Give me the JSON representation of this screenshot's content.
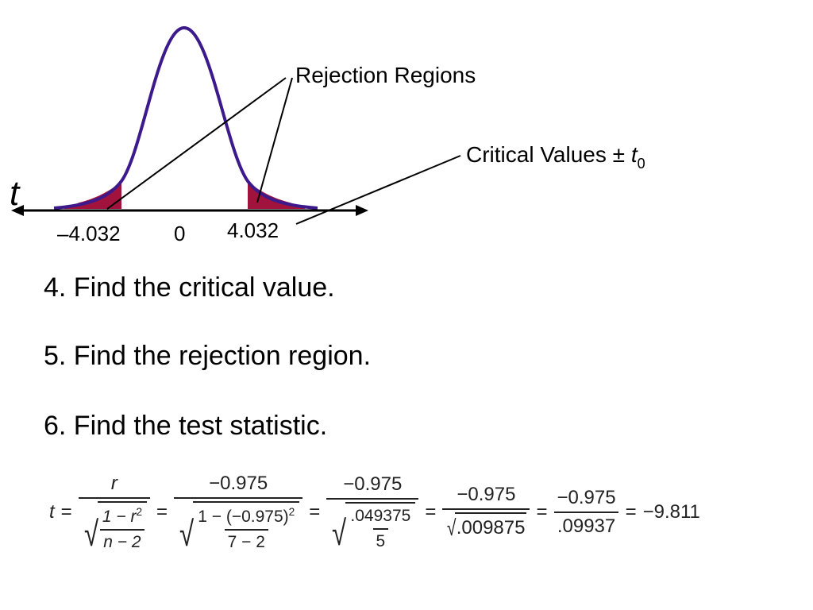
{
  "diagram": {
    "axis_variable": "t",
    "tick_labels": {
      "left": "–4.032",
      "center": "0",
      "right": "4.032"
    },
    "annotations": {
      "rejection_regions": "Rejection Regions",
      "critical_values_prefix": "Critical Values ± ",
      "critical_values_var": "t",
      "critical_values_sub": "0"
    },
    "colors": {
      "curve": "#3d1a8c",
      "shade": "#a1123c",
      "axis": "#000000"
    }
  },
  "steps": [
    "4. Find the critical value.",
    "5. Find the rejection region.",
    "6. Find the test statistic."
  ],
  "formula": {
    "lhs": "t",
    "f1": {
      "num": "r",
      "den_num": "1 − r",
      "den_num_exp": "2",
      "den_den": "n − 2"
    },
    "f2": {
      "num": "−0.975",
      "den_num": "1 − (−0.975)",
      "den_num_exp": "2",
      "den_den": "7 − 2"
    },
    "f3": {
      "num": "−0.975",
      "den_num": ".049375",
      "den_den": "5"
    },
    "f4": {
      "num": "−0.975",
      "den": ".009875"
    },
    "f5": {
      "num": "−0.975",
      "den": ".09937"
    },
    "result": "−9.811"
  }
}
